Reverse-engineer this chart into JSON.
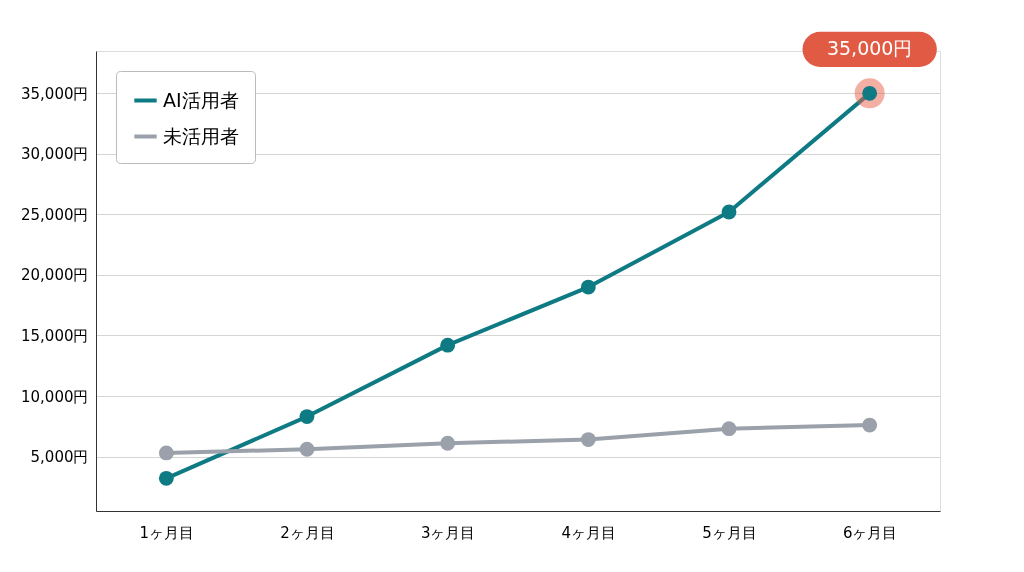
{
  "chart_data": {
    "type": "line",
    "categories": [
      "1ヶ月目",
      "2ヶ月目",
      "3ヶ月目",
      "4ヶ月目",
      "5ヶ月目",
      "6ヶ月目"
    ],
    "series": [
      {
        "name": "AI活用者",
        "color": "#0e7a83",
        "values": [
          3200,
          8300,
          14200,
          19000,
          25200,
          35000
        ]
      },
      {
        "name": "未活用者",
        "color": "#9aa1aa",
        "values": [
          5300,
          5600,
          6100,
          6400,
          7300,
          7600
        ]
      }
    ],
    "ylim": [
      500,
      38500
    ],
    "yticks": [
      {
        "value": 5000,
        "label": "5,000円"
      },
      {
        "value": 10000,
        "label": "10,000円"
      },
      {
        "value": 15000,
        "label": "15,000円"
      },
      {
        "value": 20000,
        "label": "20,000円"
      },
      {
        "value": 25000,
        "label": "25,000円"
      },
      {
        "value": 30000,
        "label": "30,000円"
      },
      {
        "value": 35000,
        "label": "35,000円"
      }
    ],
    "annotations": [
      {
        "text": "35,000円",
        "x": "6ヶ月目",
        "y": 35000
      }
    ],
    "grid": "y",
    "legend": "top left",
    "marker": "circle",
    "line_style": "solid"
  }
}
